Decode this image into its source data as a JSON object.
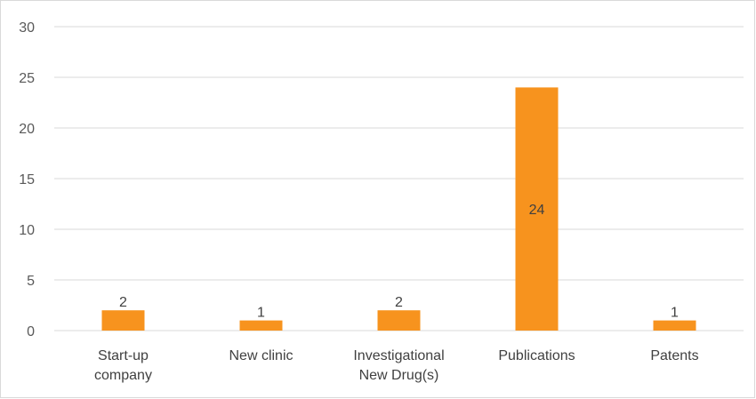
{
  "chart_data": {
    "type": "bar",
    "categories": [
      [
        "Start-up",
        "company"
      ],
      [
        "New clinic"
      ],
      [
        "Investigational",
        "New Drug(s)"
      ],
      [
        "Publications"
      ],
      [
        "Patents"
      ]
    ],
    "values": [
      2,
      1,
      2,
      24,
      1
    ],
    "data_labels": [
      "2",
      "1",
      "2",
      "24",
      "1"
    ],
    "ylim": [
      0,
      30
    ],
    "yticks": [
      0,
      5,
      10,
      15,
      20,
      25,
      30
    ],
    "grid": true,
    "legend": "none",
    "bar_color": "#f7931e",
    "grid_color": "#d9d9d9"
  }
}
